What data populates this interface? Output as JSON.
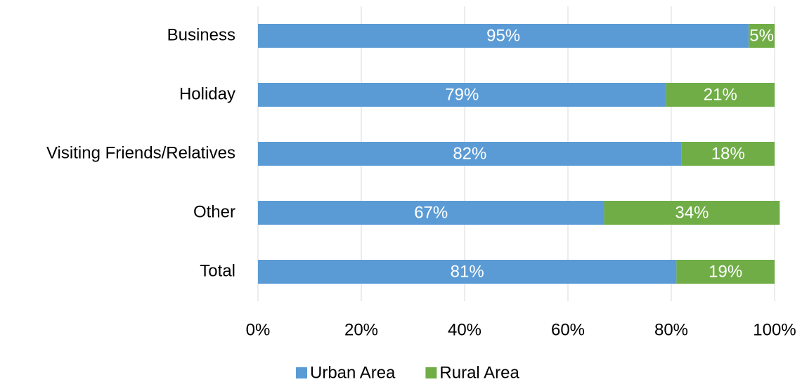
{
  "chart_data": {
    "type": "stacked_bar_horizontal",
    "categories": [
      "Business",
      "Holiday",
      "Visiting Friends/Relatives",
      "Other",
      "Total"
    ],
    "series": [
      {
        "name": "Urban Area",
        "color": "#5b9bd5",
        "values": [
          95,
          79,
          82,
          67,
          81
        ],
        "value_labels": [
          "95%",
          "79%",
          "82%",
          "67%",
          "81%"
        ]
      },
      {
        "name": "Rural Area",
        "color": "#70ad47",
        "values": [
          5,
          21,
          18,
          34,
          19
        ],
        "value_labels": [
          "5%",
          "21%",
          "18%",
          "34%",
          "19%"
        ]
      }
    ],
    "xlim": [
      0,
      100
    ],
    "xticks": [
      {
        "value": 0,
        "label": "0%"
      },
      {
        "value": 20,
        "label": "20%"
      },
      {
        "value": 40,
        "label": "40%"
      },
      {
        "value": 60,
        "label": "60%"
      },
      {
        "value": 80,
        "label": "80%"
      },
      {
        "value": 100,
        "label": "100%"
      }
    ],
    "grid": true,
    "legend": "bottom"
  }
}
